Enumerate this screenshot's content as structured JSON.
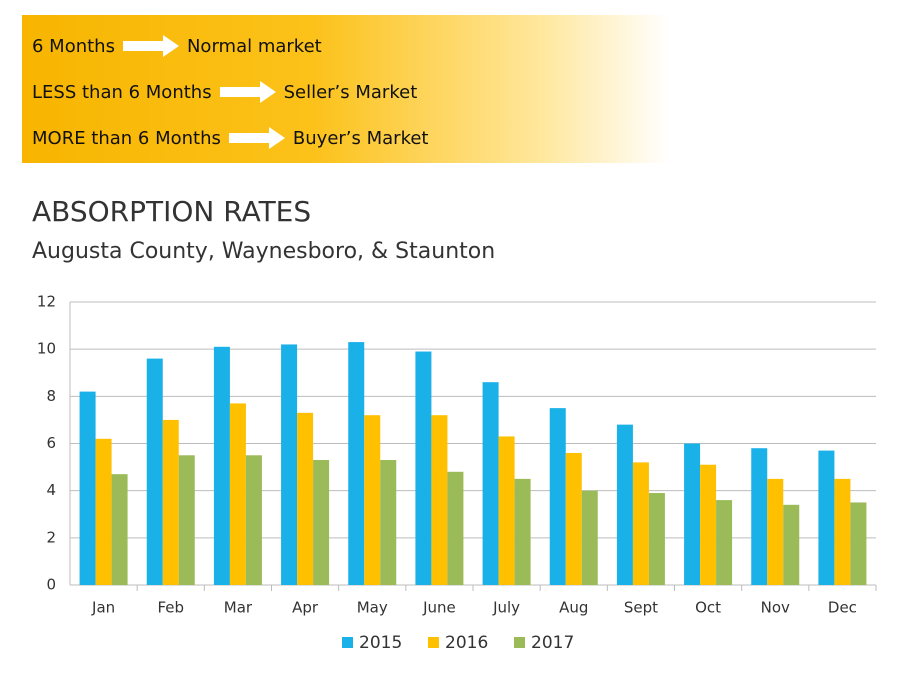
{
  "key": {
    "rows": [
      {
        "condition": "6 Months",
        "result": "Normal market"
      },
      {
        "condition": "LESS than 6 Months",
        "result": "Seller’s Market"
      },
      {
        "condition": "MORE than 6 Months",
        "result": "Buyer’s Market"
      }
    ]
  },
  "chart_data": {
    "type": "bar",
    "title": "ABSORPTION RATES",
    "subtitle": "Augusta County, Waynesboro, & Staunton",
    "categories": [
      "Jan",
      "Feb",
      "Mar",
      "Apr",
      "May",
      "June",
      "July",
      "Aug",
      "Sept",
      "Oct",
      "Nov",
      "Dec"
    ],
    "series": [
      {
        "name": "2015",
        "color": "#1ab0e8",
        "values": [
          8.2,
          9.6,
          10.1,
          10.2,
          10.3,
          9.9,
          8.6,
          7.5,
          6.8,
          6.0,
          5.8,
          5.7
        ]
      },
      {
        "name": "2016",
        "color": "#ffc000",
        "values": [
          6.2,
          7.0,
          7.7,
          7.3,
          7.2,
          7.2,
          6.3,
          5.6,
          5.2,
          5.1,
          4.5,
          4.5
        ]
      },
      {
        "name": "2017",
        "color": "#9bbb59",
        "values": [
          4.7,
          5.5,
          5.5,
          5.3,
          5.3,
          4.8,
          4.5,
          4.0,
          3.9,
          3.6,
          3.4,
          3.5
        ]
      }
    ],
    "ylim": [
      0,
      12
    ],
    "yticks": [
      0,
      2,
      4,
      6,
      8,
      10,
      12
    ],
    "grid": true,
    "legend": "bottom"
  }
}
